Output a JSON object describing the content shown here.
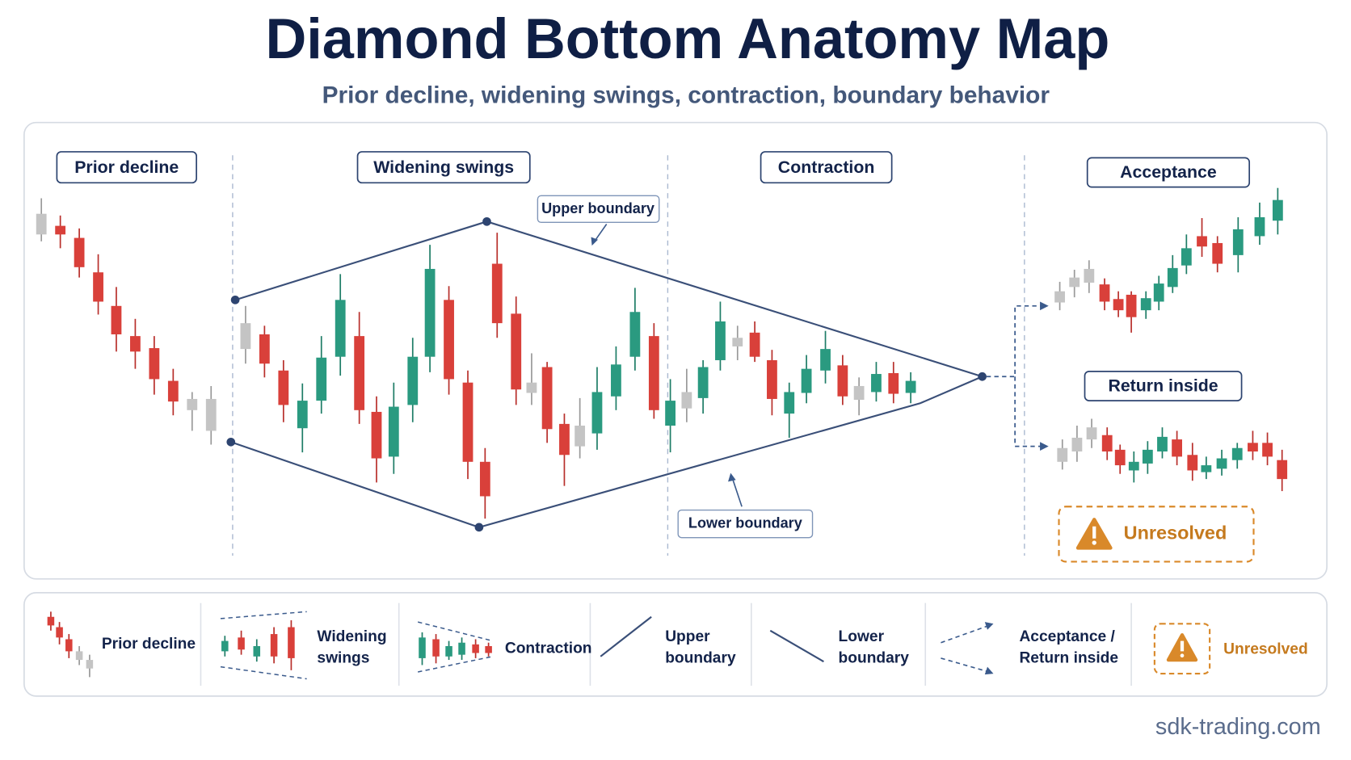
{
  "header": {
    "title": "Diamond Bottom Anatomy Map",
    "subtitle": "Prior decline, widening swings, contraction, boundary behavior"
  },
  "diagram": {
    "phases": [
      "Prior decline",
      "Widening swings",
      "Contraction"
    ],
    "outcomes": [
      "Acceptance",
      "Return inside"
    ],
    "annotations": [
      "Upper boundary",
      "Lower boundary"
    ],
    "status": "Unresolved"
  },
  "legend": [
    {
      "lines": [
        "Prior decline"
      ]
    },
    {
      "lines": [
        "Widening",
        "swings"
      ]
    },
    {
      "lines": [
        "Contraction"
      ]
    },
    {
      "lines": [
        "Upper",
        "boundary"
      ]
    },
    {
      "lines": [
        "Lower",
        "boundary"
      ]
    },
    {
      "lines": [
        "Acceptance /",
        "Return inside"
      ]
    },
    {
      "lines": [
        "Unresolved"
      ]
    }
  ],
  "footer": "sdk-trading.com"
}
